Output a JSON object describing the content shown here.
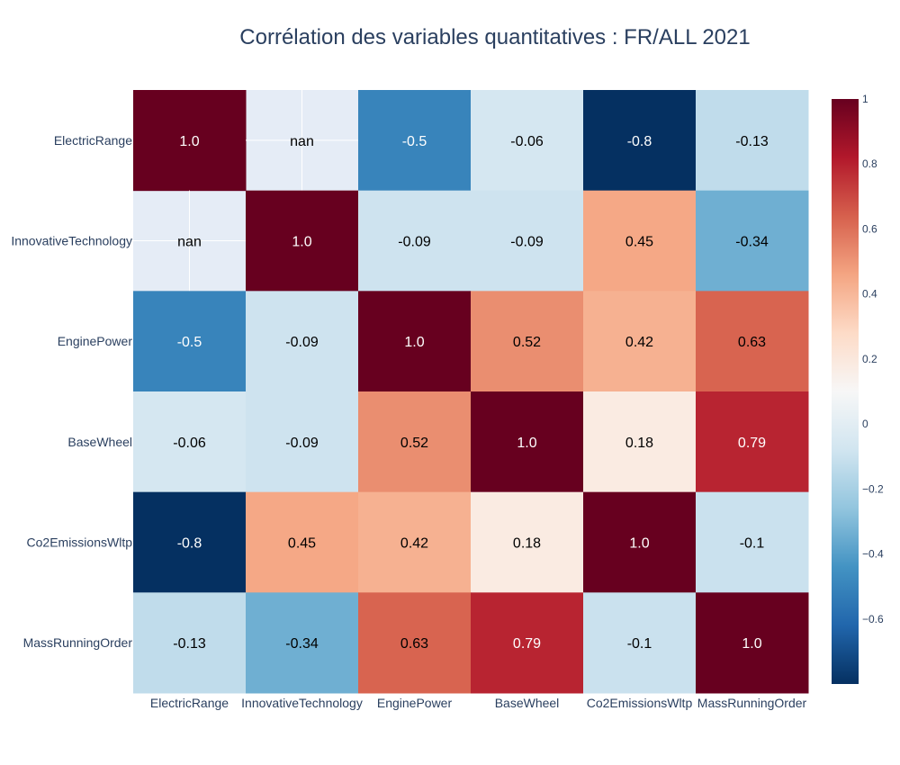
{
  "chart_data": {
    "type": "heatmap",
    "title": "Corrélation des variables quantitatives : FR/ALL 2021",
    "x": [
      "ElectricRange",
      "InnovativeTechnology",
      "EnginePower",
      "BaseWheel",
      "Co2EmissionsWltp",
      "MassRunningOrder"
    ],
    "y": [
      "ElectricRange",
      "InnovativeTechnology",
      "EnginePower",
      "BaseWheel",
      "Co2EmissionsWltp",
      "MassRunningOrder"
    ],
    "z": [
      [
        1.0,
        null,
        -0.5,
        -0.06,
        -0.8,
        -0.13
      ],
      [
        null,
        1.0,
        -0.09,
        -0.09,
        0.45,
        -0.34
      ],
      [
        -0.5,
        -0.09,
        1.0,
        0.52,
        0.42,
        0.63
      ],
      [
        -0.06,
        -0.09,
        0.52,
        1.0,
        0.18,
        0.79
      ],
      [
        -0.8,
        0.45,
        0.42,
        0.18,
        1.0,
        -0.1
      ],
      [
        -0.13,
        -0.34,
        0.63,
        0.79,
        -0.1,
        1.0
      ]
    ],
    "cell_labels": [
      [
        "1.0",
        "nan",
        "-0.5",
        "-0.06",
        "-0.8",
        "-0.13"
      ],
      [
        "nan",
        "1.0",
        "-0.09",
        "-0.09",
        "0.45",
        "-0.34"
      ],
      [
        "-0.5",
        "-0.09",
        "1.0",
        "0.52",
        "0.42",
        "0.63"
      ],
      [
        "-0.06",
        "-0.09",
        "0.52",
        "1.0",
        "0.18",
        "0.79"
      ],
      [
        "-0.8",
        "0.45",
        "0.42",
        "0.18",
        "1.0",
        "-0.1"
      ],
      [
        "-0.13",
        "-0.34",
        "0.63",
        "0.79",
        "-0.1",
        "1.0"
      ]
    ],
    "zmin": -0.8,
    "zmax": 1.0,
    "colorscale": "RdBu_r",
    "colorbar_ticks": [
      1,
      0.8,
      0.6,
      0.4,
      0.2,
      0,
      -0.2,
      -0.4,
      -0.6
    ],
    "colorbar_tick_labels": [
      "1",
      "0.8",
      "0.6",
      "0.4",
      "0.2",
      "0",
      "−0.2",
      "−0.4",
      "−0.6"
    ],
    "nan_color": "#e5ecf6",
    "legend": "colorbar-right"
  }
}
